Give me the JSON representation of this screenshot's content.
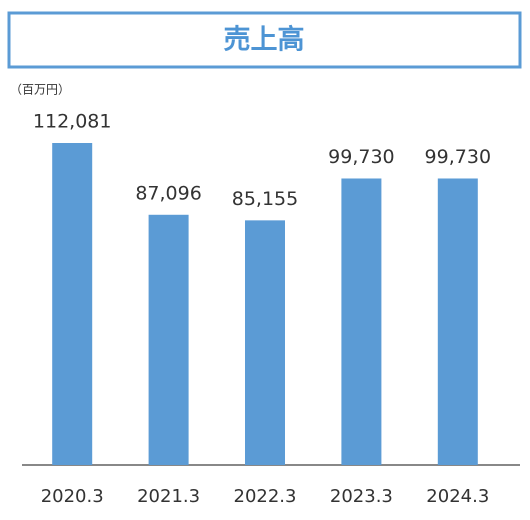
{
  "chart_data": {
    "type": "bar",
    "title": "売上高",
    "unit_label": "（百万円）",
    "categories": [
      "2020.3",
      "2021.3",
      "2022.3",
      "2023.3",
      "2024.3"
    ],
    "values": [
      112081,
      87096,
      85155,
      99730,
      99730
    ],
    "value_labels": [
      "112,081",
      "87,096",
      "85,155",
      "99,730",
      "99,730"
    ],
    "color": "#5b9bd5"
  }
}
